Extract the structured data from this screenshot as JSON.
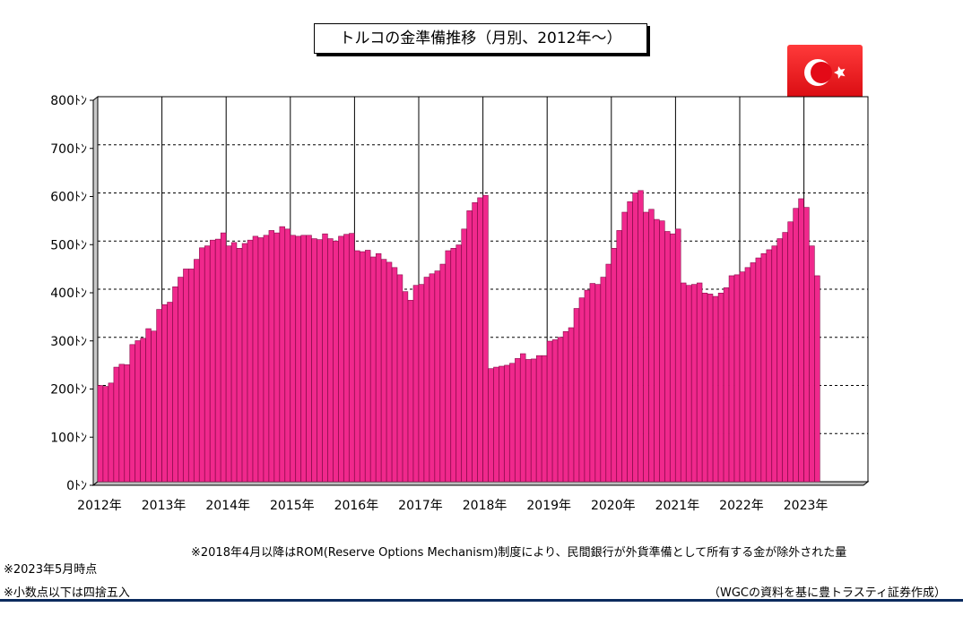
{
  "title": "トルコの金準備推移（月別、2012年～）",
  "colors": {
    "bar": "#f0288c",
    "bar_edge": "#8a0a4a",
    "flag_red": "#e30a17",
    "rule": "#0b2a5e"
  },
  "icons": {
    "flag": "turkey-flag-icon"
  },
  "notes": {
    "rom": "※2018年4月以降はROM(Reserve Options Mechanism)制度により、民間銀行が外貨準備として所有する金が除外された量",
    "as_of": "※2023年5月時点",
    "rounding": "※小数点以下は四捨五入",
    "source": "（WGCの資料を基に豊トラスティ証券作成）"
  },
  "chart_data": {
    "type": "bar",
    "title": "トルコの金準備推移（月別、2012年～）",
    "ylim": [
      0,
      800
    ],
    "y_ticks": [
      "0ﾄﾝ",
      "100ﾄﾝ",
      "200ﾄﾝ",
      "300ﾄﾝ",
      "400ﾄﾝ",
      "500ﾄﾝ",
      "600ﾄﾝ",
      "700ﾄﾝ",
      "800ﾄﾝ"
    ],
    "x_ticks": [
      "2012年",
      "2013年",
      "2014年",
      "2015年",
      "2016年",
      "2017年",
      "2018年",
      "2019年",
      "2020年",
      "2021年",
      "2022年",
      "2023年"
    ],
    "grid": true,
    "x_start": "2012-01",
    "x_end": "2023-05",
    "values": [
      200,
      198,
      205,
      238,
      244,
      243,
      285,
      293,
      298,
      318,
      313,
      358,
      368,
      373,
      405,
      425,
      442,
      442,
      462,
      486,
      490,
      502,
      504,
      517,
      490,
      497,
      485,
      495,
      502,
      510,
      507,
      512,
      522,
      517,
      530,
      525,
      512,
      510,
      512,
      512,
      505,
      503,
      515,
      505,
      500,
      510,
      514,
      516,
      480,
      478,
      481,
      467,
      474,
      462,
      456,
      445,
      430,
      395,
      377,
      408,
      410,
      425,
      432,
      438,
      452,
      480,
      485,
      492,
      525,
      563,
      580,
      590,
      595,
      235,
      238,
      240,
      242,
      246,
      256,
      266,
      254,
      255,
      262,
      262,
      292,
      295,
      300,
      312,
      320,
      360,
      382,
      398,
      412,
      410,
      425,
      452,
      485,
      522,
      560,
      582,
      600,
      605,
      560,
      566,
      545,
      542,
      520,
      515,
      525,
      413,
      408,
      410,
      413,
      392,
      390,
      385,
      392,
      403,
      428,
      430,
      436,
      445,
      455,
      465,
      474,
      482,
      490,
      505,
      518,
      540,
      568,
      588,
      570,
      490,
      428
    ]
  }
}
